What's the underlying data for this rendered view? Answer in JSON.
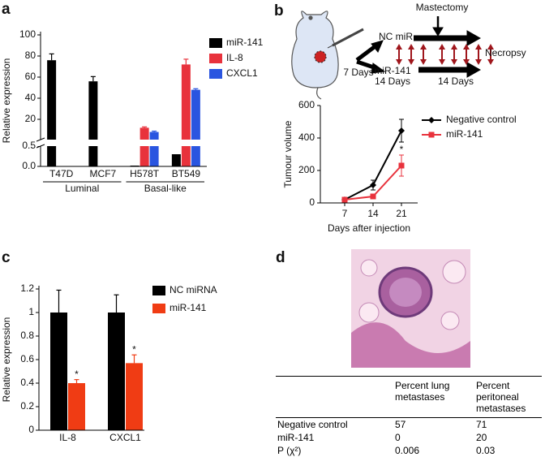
{
  "panel_labels": [
    "a",
    "b",
    "c",
    "d"
  ],
  "chart_data": [
    {
      "type": "bar",
      "ylabel": "Relative expression",
      "categories": [
        "T47D",
        "MCF7",
        "H578T",
        "BT549"
      ],
      "groups": [
        {
          "name": "Luminal",
          "members": [
            "T47D",
            "MCF7"
          ]
        },
        {
          "name": "Basal-like",
          "members": [
            "H578T",
            "BT549"
          ]
        }
      ],
      "series": [
        {
          "name": "miR-141",
          "color": "#000000",
          "values": [
            76,
            56,
            0.02,
            0.3
          ],
          "errors": [
            6,
            4.5,
            null,
            null
          ]
        },
        {
          "name": "IL-8",
          "color": "#e8323c",
          "values": [
            0,
            0,
            12,
            72
          ],
          "errors": [
            null,
            null,
            0.8,
            5
          ]
        },
        {
          "name": "CXCL1",
          "color": "#2a55e0",
          "values": [
            0,
            0,
            8,
            48
          ],
          "errors": [
            null,
            null,
            0.8,
            1
          ]
        }
      ],
      "ylim": [
        0,
        100
      ],
      "yticks": [
        20,
        40,
        60,
        80,
        100
      ],
      "ylim_lower": [
        0,
        0.5
      ],
      "yticks_lower": [
        {
          "value": 0,
          "label": "0.0"
        },
        0.5
      ],
      "legend": "right"
    },
    {
      "type": "line",
      "xlabel": "Days after injection",
      "ylabel": "Tumour volume",
      "x": [
        7,
        14,
        21
      ],
      "xlim": [
        1,
        25
      ],
      "xticks": [
        7,
        14,
        21
      ],
      "ylim": [
        0,
        600
      ],
      "yticks": [
        0,
        200,
        400,
        600
      ],
      "series": [
        {
          "name": "Negative control",
          "color": "#000000",
          "values": [
            20,
            110,
            445
          ],
          "errors": [
            5,
            30,
            70
          ]
        },
        {
          "name": "miR-141",
          "color": "#e8323c",
          "values": [
            20,
            40,
            230
          ],
          "errors": [
            5,
            15,
            65
          ],
          "marks": [
            null,
            null,
            "*"
          ]
        }
      ],
      "legend": "upper right"
    },
    {
      "type": "bar",
      "ylabel": "Relative expression",
      "categories": [
        "IL-8",
        "CXCL1"
      ],
      "series": [
        {
          "name": "NC miRNA",
          "color": "#000000",
          "values": [
            1,
            1
          ],
          "errors": [
            0.19,
            0.15
          ]
        },
        {
          "name": "miR-141",
          "color": "#f03c14",
          "values": [
            0.4,
            0.57
          ],
          "errors": [
            0.03,
            0.07
          ],
          "marks": [
            "*",
            "*"
          ]
        }
      ],
      "ylim": [
        0,
        1.2
      ],
      "yticks": [
        0,
        0.2,
        0.4,
        0.6,
        0.8,
        1,
        1.2
      ],
      "legend": "right"
    }
  ],
  "diagram": {
    "event": "Mastectomy",
    "control_arm": "NC miR",
    "treatment_arm": "miR-141",
    "first_interval": "7 Days",
    "second_interval": "14 Days",
    "third_interval": "14 Days",
    "endpoint": "Necropsy"
  },
  "table": {
    "columns": [
      "Percent lung metastases",
      "Percent peritoneal metastases"
    ],
    "rows": [
      [
        "Negative control",
        57,
        71
      ],
      [
        "miR-141",
        0,
        20
      ],
      [
        "P (χ²)",
        0.006,
        0.03
      ]
    ]
  }
}
